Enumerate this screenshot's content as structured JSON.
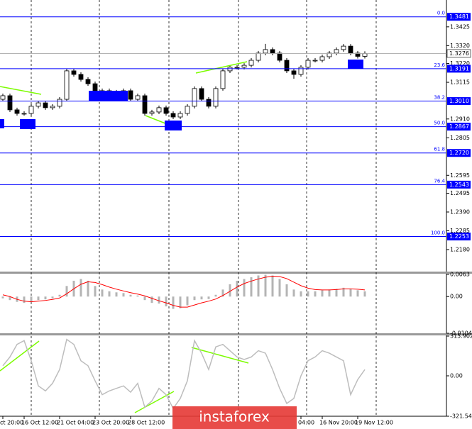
{
  "chart_data": [
    {
      "type": "candlestick",
      "open": [
        1.302,
        1.304,
        1.2961,
        1.2941,
        1.2941,
        1.2981,
        1.3,
        1.2973,
        1.2981,
        1.302,
        1.3179,
        1.3159,
        1.3131,
        1.3107,
        1.306,
        1.3068,
        1.3052,
        1.306,
        1.3068,
        1.302,
        1.304,
        1.2941,
        1.2949,
        1.2973,
        1.2941,
        1.2921,
        1.2941,
        1.2981,
        1.308,
        1.302,
        1.2981,
        1.308,
        1.3179,
        1.3199,
        1.3199,
        1.321,
        1.3238,
        1.3278,
        1.3298,
        1.3278,
        1.3238,
        1.3179,
        1.3159,
        1.3199,
        1.3238,
        1.3238,
        1.3258,
        1.3278,
        1.3298,
        1.3317,
        1.3278,
        1.326
      ],
      "high": [
        1.3052,
        1.3052,
        1.2973,
        1.2953,
        1.2993,
        1.3012,
        1.3012,
        1.2993,
        1.3032,
        1.3191,
        1.3191,
        1.3171,
        1.3143,
        1.3119,
        1.308,
        1.308,
        1.3072,
        1.308,
        1.308,
        1.3052,
        1.3052,
        1.2961,
        1.2985,
        1.2985,
        1.2953,
        1.2953,
        1.2993,
        1.3092,
        1.3092,
        1.3032,
        1.3092,
        1.3191,
        1.3211,
        1.3211,
        1.3222,
        1.325,
        1.329,
        1.333,
        1.331,
        1.329,
        1.325,
        1.3191,
        1.3211,
        1.325,
        1.325,
        1.327,
        1.329,
        1.331,
        1.3329,
        1.3329,
        1.329,
        1.3288
      ],
      "low": [
        1.3008,
        1.2949,
        1.2929,
        1.2929,
        1.2929,
        1.2969,
        1.2961,
        1.2961,
        1.2969,
        1.3008,
        1.3147,
        1.3119,
        1.3095,
        1.3048,
        1.3048,
        1.304,
        1.304,
        1.3048,
        1.3008,
        1.3008,
        1.2929,
        1.2929,
        1.2937,
        1.2929,
        1.2909,
        1.2909,
        1.2929,
        1.2969,
        1.3008,
        1.2969,
        1.2969,
        1.3068,
        1.3167,
        1.3187,
        1.3187,
        1.3198,
        1.3226,
        1.3266,
        1.3266,
        1.3226,
        1.3167,
        1.3135,
        1.3147,
        1.3187,
        1.3226,
        1.3226,
        1.3246,
        1.3266,
        1.3286,
        1.3266,
        1.3248,
        1.3248
      ],
      "close": [
        1.304,
        1.2961,
        1.2941,
        1.2941,
        1.2981,
        1.3,
        1.2973,
        1.2981,
        1.302,
        1.3179,
        1.3159,
        1.3131,
        1.3107,
        1.306,
        1.3068,
        1.3052,
        1.306,
        1.3068,
        1.302,
        1.304,
        1.2941,
        1.2949,
        1.2973,
        1.2941,
        1.2921,
        1.2941,
        1.2981,
        1.308,
        1.302,
        1.2981,
        1.308,
        1.3179,
        1.3199,
        1.3199,
        1.321,
        1.3238,
        1.3278,
        1.3298,
        1.3278,
        1.3238,
        1.3179,
        1.3159,
        1.3199,
        1.3238,
        1.3238,
        1.3258,
        1.3278,
        1.3298,
        1.3317,
        1.3278,
        1.326,
        1.3276
      ],
      "ylim": [
        1.2057,
        1.3575
      ],
      "yticks": [
        1.3425,
        {
          "value": 1.332,
          "label": "1.3320"
        },
        {
          "value": 1.322,
          "label": "1.3220"
        },
        1.3115,
        {
          "value": 1.291,
          "label": "1.2910"
        },
        1.2805,
        1.2595,
        1.2495,
        {
          "value": 1.239,
          "label": "1.2390"
        },
        1.2285,
        {
          "value": 1.218,
          "label": "1.2180"
        }
      ],
      "fib_levels": [
        {
          "label": "0.0",
          "price": 1.3481
        },
        {
          "label": "23.6",
          "price": 1.3191
        },
        {
          "label": "38.2",
          "price": {
            "value": 1.301,
            "label": "1.3010"
          }
        },
        {
          "label": "50.0",
          "price": 1.2867
        },
        {
          "label": "61.8",
          "price": {
            "value": 1.272,
            "label": "1.2720"
          }
        },
        {
          "label": "76.4",
          "price": 1.2543
        },
        {
          "label": "100.0",
          "price": 1.2253
        }
      ],
      "fib_color": "#0000ff",
      "last_price": 1.3276
    },
    {
      "type": "macd",
      "histogram": [
        -0.0005,
        -0.001,
        -0.0015,
        -0.0018,
        -0.0015,
        -0.001,
        -0.0008,
        -0.0005,
        0.0005,
        0.003,
        0.0045,
        0.005,
        0.0045,
        0.003,
        0.002,
        0.0015,
        0.0012,
        0.001,
        0.0005,
        0.0003,
        -0.001,
        -0.0018,
        -0.002,
        -0.0028,
        -0.0035,
        -0.0033,
        -0.0025,
        -0.001,
        -0.0008,
        -0.0007,
        0.0005,
        0.002,
        0.0035,
        0.0045,
        0.005,
        0.0055,
        0.006,
        0.0062,
        0.006,
        0.005,
        0.0035,
        0.002,
        0.0015,
        0.0015,
        0.0015,
        0.0018,
        0.002,
        0.0022,
        0.0025,
        0.0022,
        0.0018,
        0.0015
      ],
      "signal": [
        0.0005,
        0.0,
        -0.0008,
        -0.0013,
        -0.0015,
        -0.0013,
        -0.0011,
        -0.0008,
        -0.0004,
        0.0008,
        0.0022,
        0.0035,
        0.0042,
        0.004,
        0.0034,
        0.0027,
        0.0021,
        0.0016,
        0.0011,
        0.0007,
        0.0002,
        -0.0005,
        -0.0012,
        -0.0018,
        -0.0025,
        -0.003,
        -0.003,
        -0.0024,
        -0.0018,
        -0.0013,
        -0.0007,
        0.0003,
        0.0015,
        0.0027,
        0.0037,
        0.0044,
        0.005,
        0.0055,
        0.0058,
        0.0057,
        0.0051,
        0.0041,
        0.0031,
        0.0024,
        0.002,
        0.0019,
        0.0019,
        0.002,
        0.0022,
        0.0022,
        0.0021,
        0.0019
      ],
      "histogram_color": "#b4b4b4",
      "signal_color": "#ff0000",
      "ylim": [
        -0.01044,
        0.0063
      ],
      "yticks": [
        0.0063,
        {
          "value": 0,
          "label": "0.00"
        },
        -0.01044
      ]
    },
    {
      "type": "line",
      "values": [
        80,
        150,
        250,
        280,
        120,
        -80,
        -120,
        -60,
        50,
        290,
        250,
        120,
        80,
        -40,
        -150,
        -120,
        -100,
        -80,
        -130,
        -60,
        -250,
        -200,
        -100,
        -150,
        -260,
        -180,
        -40,
        280,
        180,
        50,
        230,
        250,
        200,
        150,
        130,
        150,
        200,
        180,
        50,
        -100,
        -220,
        -180,
        0,
        120,
        150,
        200,
        180,
        150,
        120,
        -150,
        -30,
        50
      ],
      "color": "#bdbdbd",
      "ylim": [
        -321.547,
        315.9023
      ],
      "yticks": [
        315.9023,
        {
          "value": 0,
          "label": "0.00"
        },
        -321.547
      ],
      "categories": [
        "ct 20:00",
        null,
        null,
        "16 Oct 12:00",
        null,
        null,
        null,
        null,
        "21 Oct 04:00",
        null,
        null,
        null,
        null,
        "23 Oct 20:00",
        null,
        null,
        null,
        null,
        "28 Oct 12:00",
        null,
        null,
        null,
        null,
        null,
        null,
        null,
        null,
        null,
        null,
        null,
        null,
        null,
        null,
        null,
        null,
        null,
        null,
        null,
        null,
        null,
        null,
        null,
        "04:00",
        null,
        null,
        "16 Nov 20:00",
        null,
        null,
        null,
        null,
        "19 Nov 12:00",
        null
      ]
    }
  ],
  "watermark": "instaforex"
}
